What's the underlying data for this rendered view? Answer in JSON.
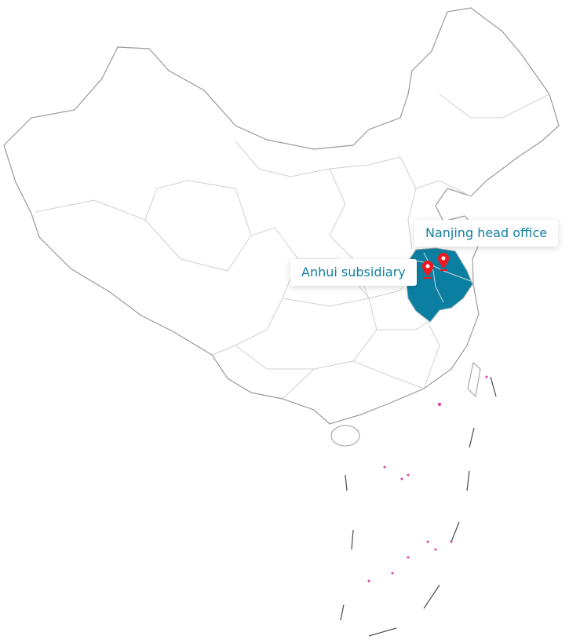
{
  "map": {
    "highlight_color": "#0b7fa1",
    "border_color": "#c8c8c8",
    "outline_color": "#9a9a9a",
    "marker_color": "#f0191e",
    "label_color": "#12809f"
  },
  "markers": [
    {
      "label": "Anhui subsidiary",
      "icon": "map-pin-icon"
    },
    {
      "label": "Nanjing head office",
      "icon": "map-pin-icon"
    }
  ]
}
